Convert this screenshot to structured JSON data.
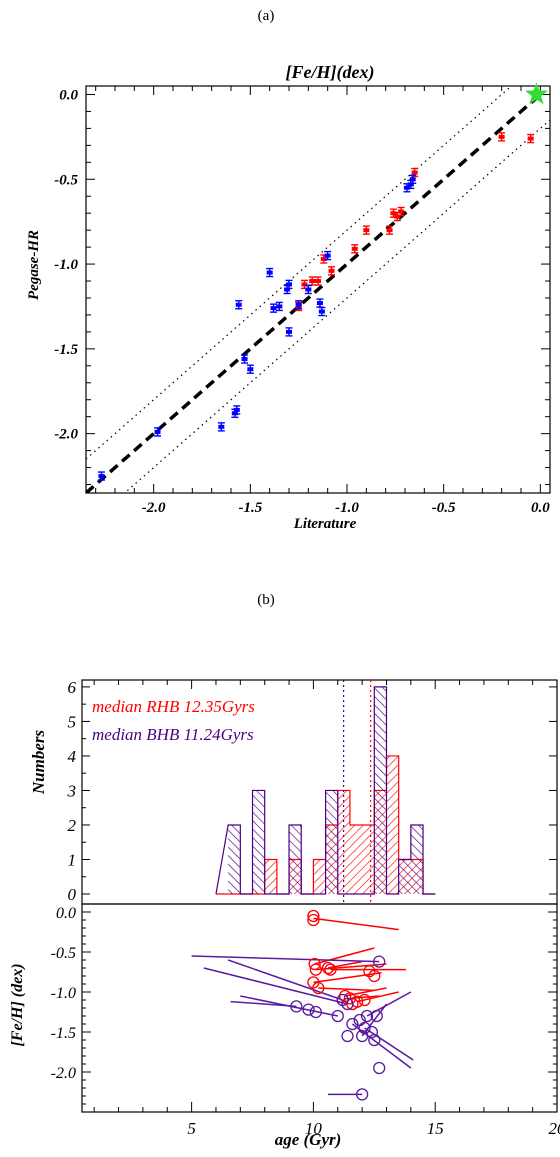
{
  "figure": {
    "panel_a_label": "(a)",
    "panel_b_label": "(b)"
  },
  "chart_data": [
    {
      "type": "scatter",
      "title": "[Fe/H](dex)",
      "xlabel": "Literature",
      "ylabel": "Pegase-HR",
      "xlim": [
        -2.35,
        0.05
      ],
      "ylim": [
        -2.35,
        0.05
      ],
      "xticks": [
        -2.0,
        -1.5,
        -1.0,
        -0.5,
        0.0
      ],
      "xtick_labels": [
        "-2.0",
        "-1.5",
        "-1.0",
        "-0.5",
        "0.0"
      ],
      "yticks": [
        -2.0,
        -1.5,
        -1.0,
        -0.5,
        0.0
      ],
      "ytick_labels": [
        "-2.0",
        "-1.5",
        "-1.0",
        "-0.5",
        "0.0"
      ],
      "lines": [
        {
          "style": "dashed",
          "color": "#000000",
          "x": [
            -2.35,
            0.0
          ],
          "y": [
            -2.35,
            0.0
          ]
        },
        {
          "style": "dotted",
          "color": "#000000",
          "x": [
            -2.35,
            0.05
          ],
          "y": [
            -2.15,
            0.25
          ]
        },
        {
          "style": "dotted",
          "color": "#000000",
          "x": [
            -2.35,
            0.05
          ],
          "y": [
            -2.55,
            -0.15
          ]
        }
      ],
      "series": [
        {
          "color": "#ff0000",
          "points": [
            [
              -0.05,
              -0.26
            ],
            [
              -0.2,
              -0.25
            ],
            [
              -0.65,
              -0.46
            ],
            [
              -0.72,
              -0.69
            ],
            [
              -0.74,
              -0.72
            ],
            [
              -0.76,
              -0.7
            ],
            [
              -0.78,
              -0.8
            ],
            [
              -0.9,
              -0.8
            ],
            [
              -0.96,
              -0.91
            ],
            [
              -1.08,
              -1.04
            ],
            [
              -1.12,
              -0.97
            ],
            [
              -1.15,
              -1.1
            ],
            [
              -1.18,
              -1.1
            ],
            [
              -1.22,
              -1.12
            ],
            [
              -1.25,
              -1.25
            ]
          ]
        },
        {
          "color": "#0000ff",
          "points": [
            [
              -0.66,
              -0.5
            ],
            [
              -0.67,
              -0.53
            ],
            [
              -0.69,
              -0.55
            ],
            [
              -1.1,
              -0.95
            ],
            [
              -1.14,
              -1.23
            ],
            [
              -1.13,
              -1.28
            ],
            [
              -1.2,
              -1.15
            ],
            [
              -1.25,
              -1.24
            ],
            [
              -1.3,
              -1.12
            ],
            [
              -1.31,
              -1.15
            ],
            [
              -1.3,
              -1.4
            ],
            [
              -1.35,
              -1.25
            ],
            [
              -1.38,
              -1.26
            ],
            [
              -1.4,
              -1.05
            ],
            [
              -1.5,
              -1.62
            ],
            [
              -1.53,
              -1.56
            ],
            [
              -1.56,
              -1.24
            ],
            [
              -1.57,
              -1.86
            ],
            [
              -1.58,
              -1.88
            ],
            [
              -1.65,
              -1.96
            ],
            [
              -1.98,
              -1.99
            ],
            [
              -2.27,
              -2.25
            ]
          ]
        },
        {
          "color": "#33dd33",
          "marker": "star",
          "points": [
            [
              -0.02,
              0.0
            ]
          ]
        }
      ]
    },
    {
      "type": "bar",
      "ylabel": "Numbers",
      "xlim": [
        0.5,
        20
      ],
      "ylim": [
        0,
        6.2
      ],
      "yticks": [
        0,
        1,
        2,
        3,
        4,
        5,
        6
      ],
      "ytick_labels": [
        "0",
        "1",
        "2",
        "3",
        "4",
        "5",
        "6"
      ],
      "bin_width": 0.5,
      "bins_start": [
        6.5,
        7.0,
        7.5,
        8.0,
        8.5,
        9.0,
        9.5,
        10.0,
        10.5,
        11.0,
        11.5,
        12.0,
        12.5,
        13.0,
        13.5,
        14.0,
        14.5
      ],
      "series": [
        {
          "name": "median RHB 12.35Gyrs",
          "color": "#ff0000",
          "median": 12.35,
          "values": [
            0,
            0,
            0,
            1,
            0,
            1,
            0,
            1,
            2,
            3,
            2,
            2,
            3,
            4,
            1,
            1,
            0
          ]
        },
        {
          "name": "median BHB 11.24Gyrs",
          "color": "#4b0082",
          "median": 11.24,
          "values": [
            2,
            0,
            3,
            0,
            0,
            2,
            0,
            0,
            3,
            0,
            0,
            0,
            6,
            0,
            1,
            2,
            0
          ]
        }
      ],
      "legend_placement": "top-left"
    },
    {
      "type": "scatter",
      "xlabel": "age (Gyr)",
      "ylabel": "[Fe/H] (dex)",
      "xlim": [
        0.5,
        20
      ],
      "ylim": [
        -2.5,
        0.1
      ],
      "xticks": [
        5,
        10,
        15,
        20
      ],
      "xtick_labels": [
        "5",
        "10",
        "15",
        "20"
      ],
      "yticks": [
        0.0,
        -0.5,
        -1.0,
        -1.5,
        -2.0
      ],
      "ytick_labels": [
        "0.0",
        "-0.5",
        "-1.0",
        "-1.5",
        "-2.0"
      ],
      "series": [
        {
          "color": "#ff0000",
          "marker": "open-circle",
          "points": [
            [
              10.0,
              -0.05
            ],
            [
              10.0,
              -0.1
            ],
            [
              10.05,
              -0.65
            ],
            [
              10.1,
              -0.72
            ],
            [
              10.6,
              -0.7
            ],
            [
              10.7,
              -0.72
            ],
            [
              10.0,
              -0.88
            ],
            [
              10.2,
              -0.95
            ],
            [
              11.3,
              -1.05
            ],
            [
              11.5,
              -1.08
            ],
            [
              11.8,
              -1.12
            ],
            [
              11.6,
              -1.15
            ],
            [
              12.1,
              -1.1
            ],
            [
              12.3,
              -0.74
            ],
            [
              12.5,
              -0.8
            ]
          ],
          "vectors": [
            [
              [
                10.0,
                -0.08
              ],
              [
                13.5,
                -0.22
              ]
            ],
            [
              [
                10.05,
                -0.65
              ],
              [
                12.5,
                -0.45
              ]
            ],
            [
              [
                10.1,
                -0.72
              ],
              [
                13.0,
                -0.65
              ]
            ],
            [
              [
                10.6,
                -0.7
              ],
              [
                12.0,
                -0.62
              ]
            ],
            [
              [
                10.7,
                -0.72
              ],
              [
                13.8,
                -0.72
              ]
            ],
            [
              [
                10.0,
                -0.88
              ],
              [
                12.8,
                -0.76
              ]
            ],
            [
              [
                10.2,
                -0.95
              ],
              [
                12.5,
                -0.98
              ]
            ],
            [
              [
                11.3,
                -1.05
              ],
              [
                13.0,
                -0.95
              ]
            ],
            [
              [
                11.5,
                -1.08
              ],
              [
                12.7,
                -1.05
              ]
            ],
            [
              [
                11.8,
                -1.12
              ],
              [
                13.5,
                -1.0
              ]
            ]
          ]
        },
        {
          "color": "#5a1aa0",
          "marker": "open-circle",
          "points": [
            [
              12.7,
              -0.62
            ],
            [
              11.2,
              -1.1
            ],
            [
              11.4,
              -1.15
            ],
            [
              9.3,
              -1.18
            ],
            [
              10.1,
              -1.25
            ],
            [
              9.8,
              -1.22
            ],
            [
              11.0,
              -1.3
            ],
            [
              12.2,
              -1.3
            ],
            [
              12.6,
              -1.3
            ],
            [
              11.9,
              -1.35
            ],
            [
              12.1,
              -1.45
            ],
            [
              11.6,
              -1.4
            ],
            [
              12.4,
              -1.5
            ],
            [
              12.0,
              -1.55
            ],
            [
              11.4,
              -1.55
            ],
            [
              12.5,
              -1.6
            ],
            [
              12.7,
              -1.95
            ],
            [
              12.0,
              -2.28
            ]
          ],
          "vectors": [
            [
              [
                12.7,
                -0.62
              ],
              [
                5.0,
                -0.55
              ]
            ],
            [
              [
                11.2,
                -1.1
              ],
              [
                6.5,
                -0.6
              ]
            ],
            [
              [
                11.4,
                -1.15
              ],
              [
                5.5,
                -0.7
              ]
            ],
            [
              [
                11.0,
                -1.3
              ],
              [
                7.0,
                -1.05
              ]
            ],
            [
              [
                9.3,
                -1.18
              ],
              [
                6.6,
                -1.12
              ]
            ],
            [
              [
                12.2,
                -1.3
              ],
              [
                14.0,
                -1.0
              ]
            ],
            [
              [
                11.6,
                -1.4
              ],
              [
                14.0,
                -1.95
              ]
            ],
            [
              [
                12.1,
                -1.45
              ],
              [
                14.1,
                -1.85
              ]
            ],
            [
              [
                12.0,
                -1.55
              ],
              [
                13.0,
                -1.15
              ]
            ],
            [
              [
                12.0,
                -2.28
              ],
              [
                10.6,
                -2.28
              ]
            ]
          ]
        }
      ]
    }
  ]
}
